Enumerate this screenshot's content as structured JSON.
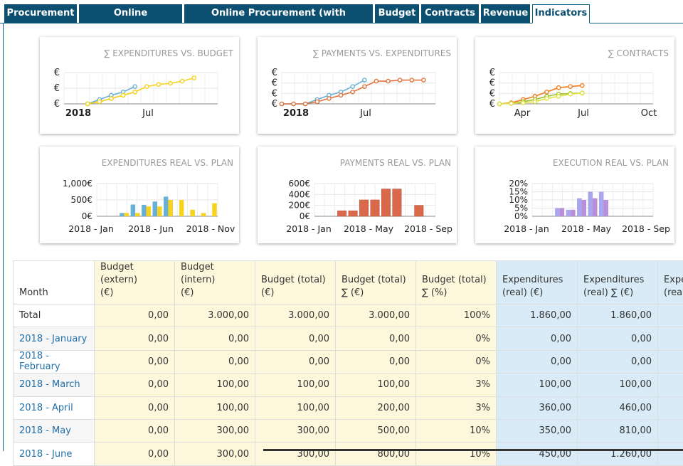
{
  "tabs": [
    {
      "label": "Procurement",
      "active": false
    },
    {
      "label": "Online Procurement",
      "active": false
    },
    {
      "label": "Online Procurement (with commission)",
      "active": false
    },
    {
      "label": "Budget",
      "active": false
    },
    {
      "label": "Contracts",
      "active": false
    },
    {
      "label": "Revenue",
      "active": false
    },
    {
      "label": "Indicators",
      "active": true
    }
  ],
  "charts": [
    {
      "title": "∑ EXPENDITURES VS. BUDGET",
      "type": "line",
      "y_labels": [
        "€",
        "€",
        "€"
      ],
      "x_labels": [
        "2018",
        "Jul"
      ],
      "series": [
        {
          "color": "#6ab0d6",
          "values": [
            0,
            0.2,
            0.4,
            0.55,
            0.8
          ]
        },
        {
          "color": "#9bc12c",
          "values": [
            0,
            0.1,
            0.25,
            0.4,
            0.55
          ]
        },
        {
          "color": "#f7d21f",
          "values": [
            0,
            0.1,
            0.25,
            0.4,
            0.55,
            0.8,
            0.9,
            0.95,
            1.05,
            1.2
          ]
        }
      ]
    },
    {
      "title": "∑ PAYMENTS VS. EXPENDITURES",
      "type": "line",
      "y_labels": [
        "€",
        "€",
        "€",
        "€"
      ],
      "x_labels": [
        "2018",
        "Jul"
      ],
      "series": [
        {
          "color": "#6ab0d6",
          "values": [
            0,
            0,
            0,
            0.2,
            0.4,
            0.55,
            0.8,
            1.1
          ]
        },
        {
          "color": "#e2723c",
          "values": [
            0,
            0,
            0,
            0.1,
            0.25,
            0.4,
            0.55,
            0.8,
            1.05,
            1.05,
            1.1,
            1.1,
            1.1
          ]
        }
      ]
    },
    {
      "title": "∑ CONTRACTS",
      "type": "line",
      "y_labels": [
        "€",
        "€",
        "€",
        "€"
      ],
      "x_labels": [
        "Apr",
        "Jul",
        "Oct"
      ],
      "series": [
        {
          "color": "#f07c1f",
          "values": [
            0,
            0.05,
            0.2,
            0.35,
            0.55,
            0.75,
            0.8,
            0.85
          ]
        },
        {
          "color": "#9bc12c",
          "values": [
            0,
            0.02,
            0.1,
            0.2,
            0.35,
            0.45,
            0.48,
            0.5
          ]
        },
        {
          "color": "#e0e040",
          "values": [
            0,
            0.02,
            0.05,
            0.1,
            0.25,
            0.35,
            0.45,
            0.5
          ]
        }
      ]
    },
    {
      "title": "EXPENDITURES REAL VS. PLAN",
      "type": "bar",
      "y_labels": [
        "1,000€",
        "500€",
        "0€"
      ],
      "x_labels": [
        "2018 - Jan",
        "2018 - Jun",
        "2018 - Nov"
      ],
      "series": [
        {
          "color": "#6ab0d6",
          "values": [
            0,
            0,
            100,
            360,
            350,
            450,
            600,
            0,
            0,
            0,
            0
          ]
        },
        {
          "color": "#f7d21f",
          "values": [
            0,
            0,
            100,
            100,
            300,
            300,
            500,
            500,
            200,
            100,
            400
          ]
        }
      ],
      "ymax": 1000
    },
    {
      "title": "PAYMENTS REAL VS. PLAN",
      "type": "bar",
      "y_labels": [
        "600€",
        "400€",
        "200€",
        "0€"
      ],
      "x_labels": [
        "2018 - Jan",
        "2018 - May",
        "2018 - Sep"
      ],
      "series": [
        {
          "color": "#d9694a",
          "values": [
            0,
            0,
            100,
            100,
            300,
            300,
            500,
            500,
            0,
            200,
            0
          ]
        }
      ],
      "ymax": 600
    },
    {
      "title": "EXECUTION REAL VS. PLAN",
      "type": "bar",
      "y_labels": [
        "20%",
        "15%",
        "10%",
        "5%",
        "0%"
      ],
      "x_labels": [
        "2018 - Jan",
        "2018 - May",
        "2018 - Sep"
      ],
      "series": [
        {
          "color": "#a9a6ee",
          "values": [
            0,
            0,
            5,
            4,
            11,
            15,
            15,
            0,
            0,
            0,
            0
          ]
        },
        {
          "color": "#b98fd9",
          "values": [
            0,
            0,
            5,
            4,
            10,
            11,
            10,
            0,
            0,
            0,
            0
          ]
        }
      ],
      "ymax": 20
    }
  ],
  "table": {
    "headers": [
      {
        "line1": "Month",
        "line2": "",
        "group": "month"
      },
      {
        "line1": "Budget (extern)",
        "line2": "(€)",
        "group": "bud"
      },
      {
        "line1": "Budget (intern)",
        "line2": "(€)",
        "group": "bud"
      },
      {
        "line1": "Budget (total)",
        "line2": "(€)",
        "group": "bud"
      },
      {
        "line1": "Budget (total)",
        "line2": "∑ (€)",
        "group": "bud"
      },
      {
        "line1": "Budget (total)",
        "line2": "∑ (%)",
        "group": "bud"
      },
      {
        "line1": "Expenditures",
        "line2": "(real) (€)",
        "group": "exp"
      },
      {
        "line1": "Expenditures",
        "line2": "(real) ∑ (€)",
        "group": "exp"
      },
      {
        "line1": "Expe",
        "line2": "(rea",
        "group": "exp"
      }
    ],
    "rows": [
      {
        "cells": [
          "Total",
          "0,00",
          "3.000,00",
          "3.000,00",
          "3.000,00",
          "100%",
          "1.860,00",
          "1.860,00",
          ""
        ],
        "total": true
      },
      {
        "cells": [
          "2018 - January",
          "0,00",
          "0,00",
          "0,00",
          "0,00",
          "0%",
          "0,00",
          "0,00",
          ""
        ]
      },
      {
        "cells": [
          "2018 - February",
          "0,00",
          "0,00",
          "0,00",
          "0,00",
          "0%",
          "0,00",
          "0,00",
          ""
        ]
      },
      {
        "cells": [
          "2018 - March",
          "0,00",
          "100,00",
          "100,00",
          "100,00",
          "3%",
          "100,00",
          "100,00",
          ""
        ]
      },
      {
        "cells": [
          "2018 - April",
          "0,00",
          "100,00",
          "100,00",
          "200,00",
          "3%",
          "360,00",
          "460,00",
          ""
        ]
      },
      {
        "cells": [
          "2018 - May",
          "0,00",
          "300,00",
          "300,00",
          "500,00",
          "10%",
          "350,00",
          "810,00",
          ""
        ]
      },
      {
        "cells": [
          "2018 - June",
          "0,00",
          "300,00",
          "300,00",
          "800,00",
          "10%",
          "450,00",
          "1.260,00",
          ""
        ]
      }
    ]
  }
}
